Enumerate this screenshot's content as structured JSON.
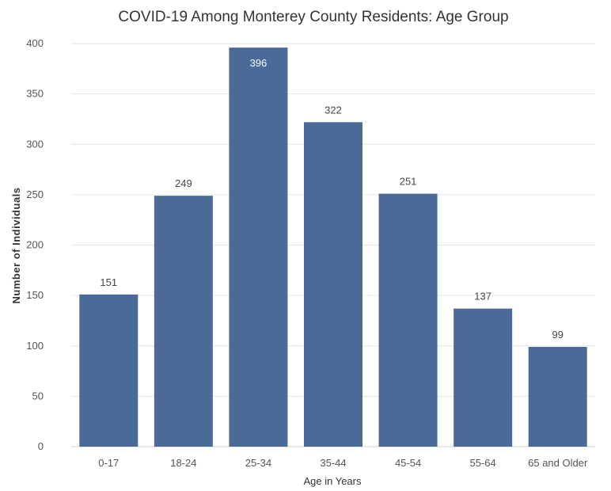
{
  "chart_data": {
    "type": "bar",
    "title": "COVID-19 Among Monterey County Residents: Age Group",
    "xlabel": "Age in Years",
    "ylabel": "Number of Individuals",
    "categories": [
      "0-17",
      "18-24",
      "25-34",
      "35-44",
      "45-54",
      "55-64",
      "65 and Older"
    ],
    "values": [
      151,
      249,
      396,
      322,
      251,
      137,
      99
    ],
    "ylim": [
      0,
      400
    ],
    "yticks": [
      0,
      50,
      100,
      150,
      200,
      250,
      300,
      350,
      400
    ],
    "grid": true,
    "bar_color": "#4a6b97",
    "legend": "none"
  }
}
